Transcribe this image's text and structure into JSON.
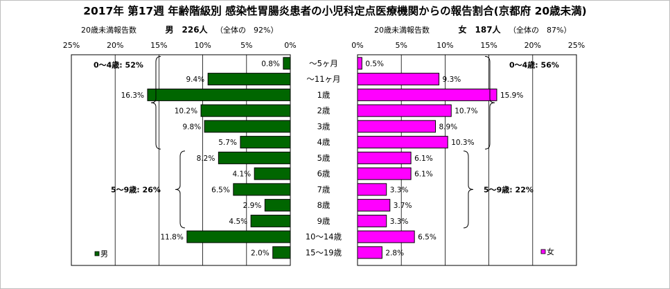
{
  "chart_data": {
    "type": "bar",
    "title": "2017年 第17週 年齢階級別 感染性胃腸炎患者の小児科定点医療機関からの報告割合(京都府 20歳未満)",
    "categories": [
      "～5ヶ月",
      "～11ヶ月",
      "1歳",
      "2歳",
      "3歳",
      "4歳",
      "5歳",
      "6歳",
      "7歳",
      "8歳",
      "9歳",
      "10～14歳",
      "15～19歳"
    ],
    "xlim": [
      0,
      25
    ],
    "ticks": [
      "0%",
      "5%",
      "10%",
      "15%",
      "20%",
      "25%"
    ],
    "grid": true,
    "series": [
      {
        "name": "男",
        "legend": "男",
        "color": "#006600",
        "header_label": "20歳未満報告数",
        "header_count": "男　226人",
        "header_share": "（全体の　92%）",
        "values": [
          0.8,
          9.4,
          16.3,
          10.2,
          9.8,
          5.7,
          8.2,
          4.1,
          6.5,
          2.9,
          4.5,
          11.8,
          2.0
        ],
        "labels": [
          "0.8%",
          "9.4%",
          "16.3%",
          "10.2%",
          "9.8%",
          "5.7%",
          "8.2%",
          "4.1%",
          "6.5%",
          "2.9%",
          "4.5%",
          "11.8%",
          "2.0%"
        ],
        "groups": [
          {
            "label": "0～4歳: 52%",
            "from": 0,
            "to": 5
          },
          {
            "label": "5～9歳: 26%",
            "from": 6,
            "to": 10
          }
        ]
      },
      {
        "name": "女",
        "legend": "女",
        "color": "#ff00ff",
        "header_label": "20歳未満報告数",
        "header_count": "女　187人",
        "header_share": "（全体の　87%）",
        "values": [
          0.5,
          9.3,
          15.9,
          10.7,
          8.9,
          10.3,
          6.1,
          6.1,
          3.3,
          3.7,
          3.3,
          6.5,
          2.8
        ],
        "labels": [
          "0.5%",
          "9.3%",
          "15.9%",
          "10.7%",
          "8.9%",
          "10.3%",
          "6.1%",
          "6.1%",
          "3.3%",
          "3.7%",
          "3.3%",
          "6.5%",
          "2.8%"
        ],
        "groups": [
          {
            "label": "0～4歳: 56%",
            "from": 0,
            "to": 5
          },
          {
            "label": "5～9歳: 22%",
            "from": 6,
            "to": 10
          }
        ]
      }
    ]
  }
}
